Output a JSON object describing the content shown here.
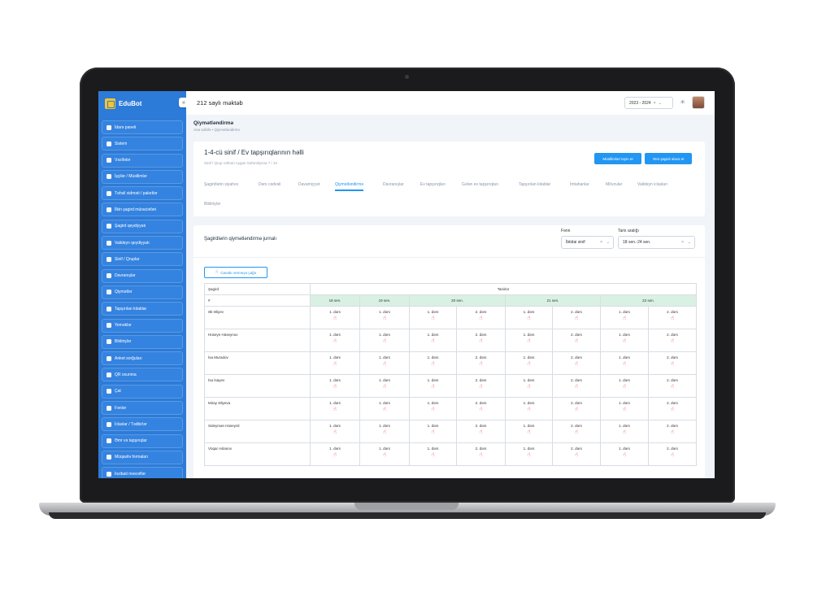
{
  "app": {
    "logo": "EduBot",
    "school": "212 saylı məktəb",
    "year": "2023 - 2024",
    "year_clear": "×",
    "year_caret": "⌄"
  },
  "sidebar": {
    "collapse": "«",
    "items": [
      "İdarə paneli",
      "Sistem",
      "Vəzifələr",
      "İşçilər / Müəllimlər",
      "Təhsil xidməti / paketlər",
      "İlkin şagird müraciətləri",
      "Şagird qeydiyyatı",
      "Valideyn qeydiyyatı",
      "Sinif / Qruplar",
      "Davranışlar",
      "Qiymətlər",
      "Tapşırılan kitablar",
      "Yeməklər",
      "Bildirişlər",
      "Anket sorğuları",
      "QR oxunma",
      "Çat",
      "Fənlər",
      "İclaslar / Tədbirlər",
      "Əmr və tapşırıqlar",
      "Müqavilə formaları",
      "İnzibati məsrəflər"
    ]
  },
  "page": {
    "title": "Qiymətləndirmə",
    "breadcrumb": "Ana səhifə  •  Qiymətləndirmə"
  },
  "class_card": {
    "title": "1-4-cü sinif / Ev tapşırıqlarının həlli",
    "subtitle": "Sinif / Qrup rəhbəri Aygün Səfərəliyeva    7 / 10",
    "btn_assign": "Müəllimləri təyin et",
    "btn_add": "Yeni şagird əlavə et",
    "tabs": [
      "Şagirdlərin siyahısı",
      "Dərs cədvəli",
      "Davamiyyət",
      "Qiymətləndirmə",
      "Davranışlar",
      "Ev tapşırıqları",
      "Gələn ev tapşırıqları",
      "Tapşırılan kitablar",
      "İmtahanlar",
      "Mövzular",
      "Valideyn iclasları",
      "Bildirişlər"
    ],
    "active_tab": "Qiymətləndirmə"
  },
  "journal": {
    "title": "Şagirdlərin qiymətləndirmə jurnalı",
    "subject_label": "Fənn",
    "subject_value": "İbtidai sinif",
    "range_label": "Tarix aralığı",
    "range_value": "18 sen.-24 sen.",
    "clear": "×",
    "caret": "⌄",
    "convert_btn": "Cavabı vermeyə çağır",
    "head_student": "Şagird",
    "head_dates": "Tarixlər",
    "head_num": "#",
    "dates": [
      "18 sen.",
      "19 sen.",
      "20 sen.",
      "21 sen.",
      "22 sen."
    ],
    "lesson1": "1. dərs",
    "lesson2": "2. dərs",
    "students": [
      "Əli Əliyev",
      "Hüseyn Hüseynov",
      "İsa Muradov",
      "İsa İsayev",
      "Miray Əliyeva",
      "Süleyman Hüseynli",
      "Vüqar Aslanov"
    ]
  }
}
